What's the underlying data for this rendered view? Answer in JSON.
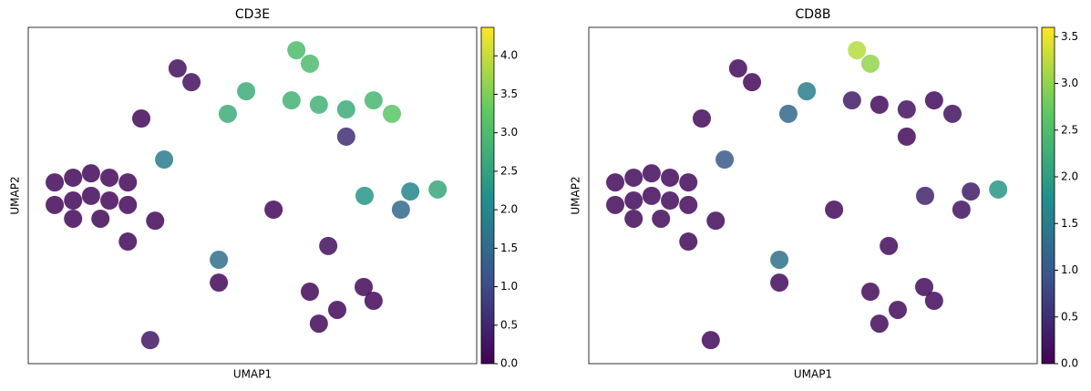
{
  "chart_data": [
    {
      "type": "scatter",
      "title": "CD3E",
      "x_label": "UMAP1",
      "y_label": "UMAP2",
      "colormap": "viridis",
      "xlim": [
        0,
        100
      ],
      "ylim": [
        0,
        100
      ],
      "x": [
        5.9,
        10,
        14,
        18.1,
        22.2,
        5.9,
        10,
        14,
        18.1,
        22.2,
        10,
        16.1,
        33.3,
        36.4,
        59.8,
        62.8,
        77,
        70.9,
        81.1,
        64.8,
        58.7,
        48.6,
        44.5,
        70.9,
        30.3,
        85.2,
        91.3,
        75,
        83.1,
        28.3,
        22.2,
        42.5,
        42.5,
        68.9,
        62.8,
        74.8,
        64.8,
        77,
        66.9,
        27.2,
        54.7,
        25.2
      ],
      "y": [
        53.9,
        55.3,
        56.6,
        55.3,
        53.9,
        47.2,
        48.5,
        49.9,
        48.5,
        47.2,
        43.1,
        43.1,
        87.8,
        83.7,
        93.2,
        89.2,
        78.3,
        75.6,
        74.3,
        77,
        78.3,
        81,
        74.3,
        67.5,
        60.7,
        51.2,
        51.8,
        49.9,
        45.8,
        42.5,
        36.3,
        24.1,
        30.9,
        16,
        21.4,
        22.8,
        11.9,
        18.7,
        35,
        7,
        45.8,
        72.9
      ],
      "values": [
        0.1,
        0.1,
        0.1,
        0.1,
        0.1,
        0.1,
        0.1,
        0.1,
        0.1,
        0.1,
        0.1,
        0.1,
        0.2,
        0.2,
        3.0,
        3.0,
        2.9,
        2.7,
        3.2,
        2.8,
        2.8,
        2.7,
        2.7,
        0.6,
        1.8,
        2.0,
        2.6,
        2.3,
        1.5,
        0.1,
        0.1,
        0.1,
        1.6,
        0.1,
        0.1,
        0.1,
        0.1,
        0.1,
        0.2,
        0.3,
        0.1,
        0.1
      ],
      "clim": [
        0,
        4.37
      ],
      "cticks": [
        {
          "value": 0,
          "label": "0.0"
        },
        {
          "value": 0.5,
          "label": "0.5"
        },
        {
          "value": 1,
          "label": "1.0"
        },
        {
          "value": 1.5,
          "label": "1.5"
        },
        {
          "value": 2,
          "label": "2.0"
        },
        {
          "value": 2.5,
          "label": "2.5"
        },
        {
          "value": 3,
          "label": "3.0"
        },
        {
          "value": 3.5,
          "label": "3.5"
        },
        {
          "value": 4,
          "label": "4.0"
        }
      ]
    },
    {
      "type": "scatter",
      "title": "CD8B",
      "x_label": "UMAP1",
      "y_label": "UMAP2",
      "colormap": "viridis",
      "xlim": [
        0,
        100
      ],
      "ylim": [
        0,
        100
      ],
      "x": [
        5.9,
        10,
        14,
        18.1,
        22.2,
        5.9,
        10,
        14,
        18.1,
        22.2,
        10,
        16.1,
        33.3,
        36.4,
        59.8,
        62.8,
        77,
        70.9,
        81.1,
        64.8,
        58.7,
        48.6,
        44.5,
        70.9,
        30.3,
        85.2,
        91.3,
        75,
        83.1,
        28.3,
        22.2,
        42.5,
        42.5,
        68.9,
        62.8,
        74.8,
        64.8,
        77,
        66.9,
        27.2,
        54.7,
        25.2
      ],
      "y": [
        53.9,
        55.3,
        56.6,
        55.3,
        53.9,
        47.2,
        48.5,
        49.9,
        48.5,
        47.2,
        43.1,
        43.1,
        87.8,
        83.7,
        93.2,
        89.2,
        78.3,
        75.6,
        74.3,
        77,
        78.3,
        81,
        74.3,
        67.5,
        60.7,
        51.2,
        51.8,
        49.9,
        45.8,
        42.5,
        36.3,
        24.1,
        30.9,
        16,
        21.4,
        22.8,
        11.9,
        18.7,
        35,
        7,
        45.8,
        72.9
      ],
      "values": [
        0.1,
        0.1,
        0.1,
        0.1,
        0.1,
        0.1,
        0.1,
        0.1,
        0.1,
        0.1,
        0.1,
        0.1,
        0.1,
        0.1,
        3.2,
        3.0,
        0.1,
        0.2,
        0.2,
        0.1,
        0.3,
        1.5,
        1.2,
        0.1,
        1.0,
        0.3,
        1.9,
        0.4,
        0.2,
        0.1,
        0.1,
        0.1,
        1.3,
        0.1,
        0.1,
        0.1,
        0.1,
        0.1,
        0.1,
        0.1,
        0.1,
        0.1
      ],
      "clim": [
        0,
        3.6
      ],
      "cticks": [
        {
          "value": 0,
          "label": "0.0"
        },
        {
          "value": 0.5,
          "label": "0.5"
        },
        {
          "value": 1,
          "label": "1.0"
        },
        {
          "value": 1.5,
          "label": "1.5"
        },
        {
          "value": 2,
          "label": "2.0"
        },
        {
          "value": 2.5,
          "label": "2.5"
        },
        {
          "value": 3,
          "label": "3.0"
        },
        {
          "value": 3.5,
          "label": "3.5"
        }
      ]
    }
  ]
}
